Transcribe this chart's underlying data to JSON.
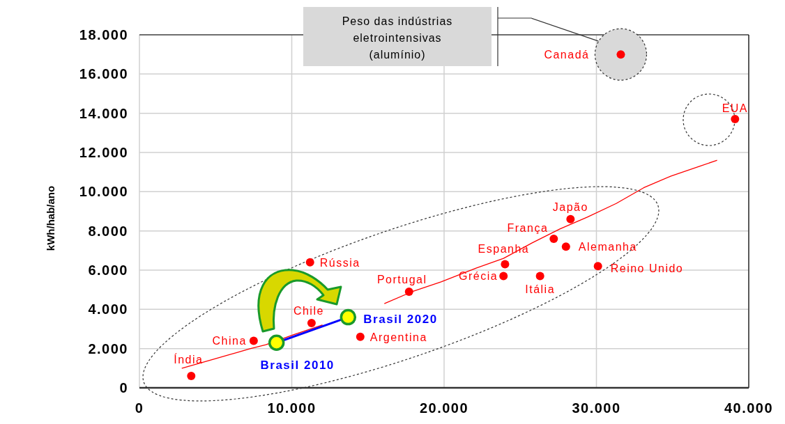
{
  "chart_data": {
    "type": "scatter",
    "ylabel": "kWh/hab/ano",
    "xlim": [
      0,
      40000
    ],
    "ylim": [
      0,
      18000
    ],
    "xticks": [
      0,
      {
        "value": 10000,
        "label": "10.000"
      },
      {
        "value": 20000,
        "label": "20.000"
      },
      {
        "value": 30000,
        "label": "30.000"
      },
      {
        "value": 40000,
        "label": "40.000"
      }
    ],
    "yticks": [
      0,
      {
        "value": 2000,
        "label": "2.000"
      },
      {
        "value": 4000,
        "label": "4.000"
      },
      {
        "value": 6000,
        "label": "6.000"
      },
      {
        "value": 8000,
        "label": "8.000"
      },
      {
        "value": 10000,
        "label": "10.000"
      },
      {
        "value": 12000,
        "label": "12.000"
      },
      {
        "value": 14000,
        "label": "14.000"
      },
      {
        "value": 16000,
        "label": "16.000"
      },
      {
        "value": 18000,
        "label": "18.000"
      }
    ],
    "grid": true,
    "marker": "circle",
    "series": [
      {
        "type": "line",
        "color": "#ff0000",
        "marker": "none",
        "x": [
          2800,
          4600,
          6400,
          7300,
          8300,
          10100,
          12000,
          13300,
          14300,
          16100,
          17900,
          19800,
          22100,
          23900,
          25800,
          27600,
          29400,
          31300,
          33100,
          34900,
          36800,
          37900
        ],
        "values": [
          1000,
          1400,
          1800,
          2000,
          2200,
          2700,
          3200,
          null,
          null,
          4300,
          4900,
          5400,
          6100,
          6600,
          7400,
          8100,
          8700,
          9400,
          10200,
          10800,
          11300,
          11600
        ]
      },
      {
        "type": "scatter",
        "color": "#ff0000",
        "x": [
          3400,
          7500,
          11300,
          11200,
          14500,
          17700,
          23900,
          24000,
          26300,
          27200,
          28000,
          28300,
          30100,
          31600,
          39100
        ],
        "values": [
          600,
          2400,
          3300,
          6400,
          2600,
          4900,
          5700,
          6300,
          5700,
          7600,
          7200,
          8600,
          6200,
          17000,
          13700
        ]
      },
      {
        "type": "line",
        "color": "#0000ff",
        "colors": [
          "#ffff00",
          "#ffff00"
        ],
        "x": [
          9000,
          13700
        ],
        "values": [
          2300,
          3600
        ]
      }
    ],
    "annotations": [
      "Peso das indústrias eletrointensivas (alumínio)",
      {
        "text": "Índia",
        "x": 3400,
        "y": 600
      },
      {
        "text": "China",
        "x": 7500,
        "y": 2400
      },
      {
        "text": "Chile",
        "x": 11300,
        "y": 3300
      },
      {
        "text": "Rússia",
        "x": 11200,
        "y": 6400
      },
      {
        "text": "Argentina",
        "x": 14500,
        "y": 2600
      },
      {
        "text": "Portugal",
        "x": 17700,
        "y": 4900
      },
      {
        "text": "Grécia",
        "x": 23900,
        "y": 5700
      },
      {
        "text": "Espanha",
        "x": 24000,
        "y": 6300
      },
      {
        "text": "Itália",
        "x": 26300,
        "y": 5700
      },
      {
        "text": "França",
        "x": 27200,
        "y": 7600
      },
      {
        "text": "Alemanha",
        "x": 28000,
        "y": 7200
      },
      {
        "text": "Japão",
        "x": 28300,
        "y": 8600
      },
      {
        "text": "Reino Unido",
        "x": 30100,
        "y": 6200
      },
      {
        "text": "Canadá",
        "x": 31600,
        "y": 17000
      },
      {
        "text": "EUA",
        "x": 39100,
        "y": 13700
      },
      {
        "text": "Brasil 2010",
        "x": 9000,
        "y": 2300
      },
      {
        "text": "Brasil 2020",
        "x": 13700,
        "y": 3600
      }
    ]
  }
}
